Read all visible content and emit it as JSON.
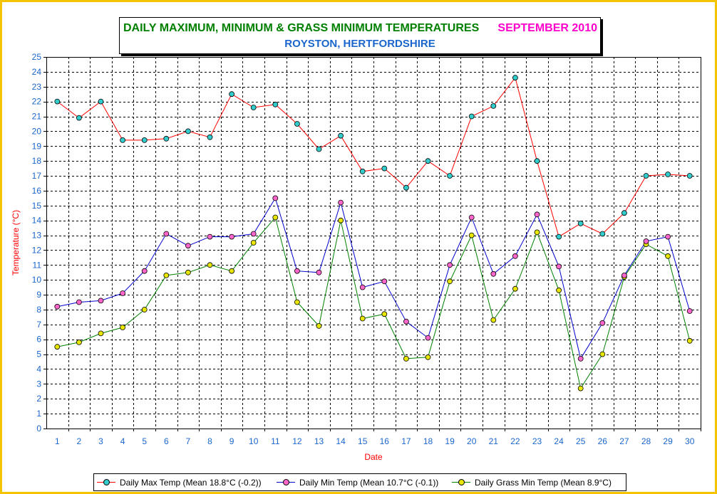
{
  "title": {
    "main": "DAILY MAXIMUM, MINIMUM & GRASS MINIMUM TEMPERATURES",
    "month": "SEPTEMBER 2010",
    "place": "ROYSTON, HERTFORDSHIRE"
  },
  "colors": {
    "frame": "#f5c400",
    "title_main": "#008000",
    "title_month": "#ff00cc",
    "title_place": "#1a66cc",
    "axis_text": "#1a66cc",
    "axis_title": "#ff0000"
  },
  "chart_data": {
    "type": "line",
    "xlabel": "Date",
    "ylabel": "Temperature (°C)",
    "ylim": [
      0,
      25
    ],
    "yticks": [
      0,
      1,
      2,
      3,
      4,
      5,
      6,
      7,
      8,
      9,
      10,
      11,
      12,
      13,
      14,
      15,
      16,
      17,
      18,
      19,
      20,
      21,
      22,
      23,
      24,
      25
    ],
    "x": [
      1,
      2,
      3,
      4,
      5,
      6,
      7,
      8,
      9,
      10,
      11,
      12,
      13,
      14,
      15,
      16,
      17,
      18,
      19,
      20,
      21,
      22,
      23,
      24,
      25,
      26,
      27,
      28,
      29,
      30
    ],
    "grid": true,
    "legend_position": "bottom",
    "series": [
      {
        "name": "Daily Max Temp (Mean 18.8°C (-0.2))",
        "line_color": "#ff0000",
        "marker_color": "#33cccc",
        "values": [
          22.0,
          20.9,
          22.0,
          19.4,
          19.4,
          19.5,
          20.0,
          19.6,
          22.5,
          21.6,
          21.8,
          20.5,
          18.8,
          19.7,
          17.3,
          17.5,
          16.2,
          18.0,
          17.0,
          21.0,
          21.7,
          23.6,
          18.0,
          12.9,
          13.8,
          13.1,
          14.5,
          17.0,
          17.1,
          17.0
        ]
      },
      {
        "name": "Daily Min Temp (Mean 10.7°C (-0.1))",
        "line_color": "#0000cc",
        "marker_color": "#ff66cc",
        "values": [
          8.2,
          8.5,
          8.6,
          9.1,
          10.6,
          13.1,
          12.3,
          12.9,
          12.9,
          13.1,
          15.5,
          10.6,
          10.5,
          15.2,
          9.5,
          9.9,
          7.2,
          6.1,
          11.0,
          14.2,
          10.4,
          11.6,
          14.4,
          10.9,
          4.7,
          7.1,
          10.3,
          12.6,
          12.9,
          7.9
        ]
      },
      {
        "name": "Daily Grass Min Temp (Mean 8.9°C)",
        "line_color": "#008000",
        "marker_color": "#e6e600",
        "values": [
          5.5,
          5.8,
          6.4,
          6.8,
          8.0,
          10.3,
          10.5,
          11.0,
          10.6,
          12.5,
          14.2,
          8.5,
          6.9,
          14.0,
          7.4,
          7.7,
          4.7,
          4.8,
          9.9,
          13.0,
          7.3,
          9.4,
          13.2,
          9.3,
          2.7,
          5.0,
          10.2,
          12.4,
          11.6,
          5.9
        ]
      }
    ]
  }
}
